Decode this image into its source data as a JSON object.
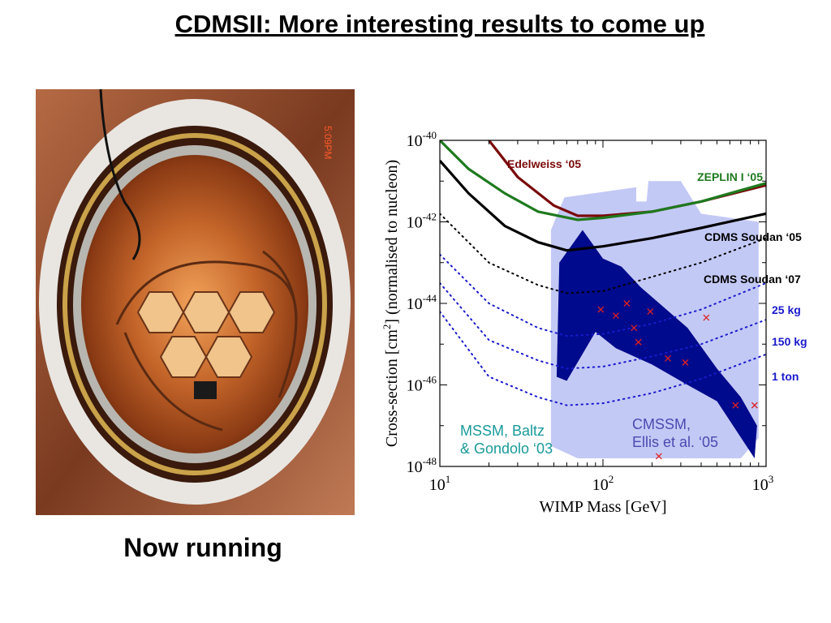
{
  "slide": {
    "title": "CDMSII: More interesting results to come up",
    "caption": "Now running"
  },
  "photo": {
    "description_icon": "cryostat-photo",
    "timestamp_overlay": "5:09PM"
  },
  "chart_data": {
    "type": "line",
    "xscale": "log",
    "yscale": "log",
    "xlim": [
      10,
      1000
    ],
    "ylim": [
      1e-48,
      1e-40
    ],
    "xlabel": "WIMP Mass [GeV]",
    "ylabel_parts": [
      "Cross-section [cm",
      "2",
      "] (normalised to nucleon)"
    ],
    "x_ticks": [
      {
        "base": "10",
        "exp": "1"
      },
      {
        "base": "10",
        "exp": "2"
      },
      {
        "base": "10",
        "exp": "3"
      }
    ],
    "y_ticks": [
      {
        "base": "10",
        "exp": "-40"
      },
      {
        "base": "10",
        "exp": "-42"
      },
      {
        "base": "10",
        "exp": "-44"
      },
      {
        "base": "10",
        "exp": "-46"
      },
      {
        "base": "10",
        "exp": "-48"
      }
    ],
    "regions": [
      {
        "name": "MSSM, Baltz & Gondolo ‘03",
        "label_lines": [
          "MSSM, Baltz",
          "& Gondolo ‘03"
        ],
        "color": "#c3c9f5",
        "points": [
          [
            48,
            -42.2
          ],
          [
            58,
            -41.4
          ],
          [
            160,
            -41.15
          ],
          [
            160,
            -41.5
          ],
          [
            185,
            -41.5
          ],
          [
            190,
            -41.0
          ],
          [
            300,
            -41.0
          ],
          [
            400,
            -41.8
          ],
          [
            900,
            -42.0
          ],
          [
            900,
            -47.3
          ],
          [
            700,
            -47.8
          ],
          [
            70,
            -47.8
          ],
          [
            48,
            -47.5
          ]
        ]
      },
      {
        "name": "CMSSM, Ellis et al. ‘05",
        "label_lines": [
          "CMSSM,",
          "Ellis et al. ‘05"
        ],
        "color": "#000a8c",
        "points": [
          [
            54,
            -43.0
          ],
          [
            75,
            -42.2
          ],
          [
            100,
            -42.9
          ],
          [
            130,
            -43.1
          ],
          [
            170,
            -43.6
          ],
          [
            330,
            -44.6
          ],
          [
            500,
            -45.6
          ],
          [
            700,
            -46.3
          ],
          [
            880,
            -47.0
          ],
          [
            850,
            -47.8
          ],
          [
            500,
            -46.4
          ],
          [
            330,
            -46.0
          ],
          [
            200,
            -45.5
          ],
          [
            120,
            -45.1
          ],
          [
            90,
            -44.7
          ],
          [
            60,
            -45.9
          ],
          [
            52,
            -45.8
          ]
        ]
      }
    ],
    "series": [
      {
        "name": "Edelweiss ‘05",
        "color": "#7a0a0a",
        "style": "solid",
        "x": [
          20,
          30,
          50,
          70,
          100,
          200,
          400,
          1000
        ],
        "y": [
          -40.0,
          -40.9,
          -41.6,
          -41.85,
          -41.85,
          -41.75,
          -41.5,
          -41.1
        ]
      },
      {
        "name": "ZEPLIN I ‘05",
        "color": "#1e7a1e",
        "style": "solid",
        "x": [
          10,
          15,
          25,
          40,
          70,
          100,
          200,
          400,
          1000
        ],
        "y": [
          -40.0,
          -40.7,
          -41.3,
          -41.75,
          -41.95,
          -41.9,
          -41.75,
          -41.5,
          -41.05
        ]
      },
      {
        "name": "CDMS Soudan ‘05",
        "color": "#000000",
        "style": "solid",
        "x": [
          10,
          15,
          25,
          40,
          60,
          100,
          200,
          400,
          1000
        ],
        "y": [
          -40.5,
          -41.3,
          -42.1,
          -42.5,
          -42.7,
          -42.6,
          -42.4,
          -42.15,
          -41.8
        ]
      },
      {
        "name": "CDMS Soudan ‘07",
        "color": "#000000",
        "style": "dotted",
        "x": [
          10,
          20,
          40,
          60,
          100,
          200,
          400,
          1000
        ],
        "y": [
          -41.8,
          -43.0,
          -43.55,
          -43.75,
          -43.7,
          -43.35,
          -43.0,
          -42.4
        ]
      },
      {
        "name": "25 kg",
        "color": "#1a1acc",
        "style": "dotted",
        "x": [
          10,
          20,
          40,
          60,
          100,
          200,
          400,
          1000
        ],
        "y": [
          -42.8,
          -44.0,
          -44.6,
          -44.8,
          -44.75,
          -44.5,
          -44.15,
          -43.5
        ]
      },
      {
        "name": "150 kg",
        "color": "#1a1acc",
        "style": "dotted",
        "x": [
          10,
          20,
          40,
          60,
          100,
          200,
          400,
          1000
        ],
        "y": [
          -43.5,
          -44.9,
          -45.4,
          -45.6,
          -45.55,
          -45.3,
          -45.0,
          -44.4
        ]
      },
      {
        "name": "1 ton",
        "color": "#1a1acc",
        "style": "dotted",
        "x": [
          10,
          20,
          40,
          60,
          100,
          200,
          400,
          1000
        ],
        "y": [
          -44.2,
          -45.8,
          -46.3,
          -46.5,
          -46.45,
          -46.2,
          -45.85,
          -45.25
        ]
      }
    ],
    "markers": {
      "name": "model points",
      "color": "#e02020",
      "symbol": "x",
      "x": [
        97,
        120,
        140,
        155,
        165,
        195,
        250,
        320,
        430,
        650,
        850,
        220
      ],
      "y": [
        -44.15,
        -44.3,
        -44.0,
        -44.6,
        -44.95,
        -44.2,
        -45.35,
        -45.45,
        -44.35,
        -46.5,
        -46.5,
        -47.75
      ]
    }
  }
}
